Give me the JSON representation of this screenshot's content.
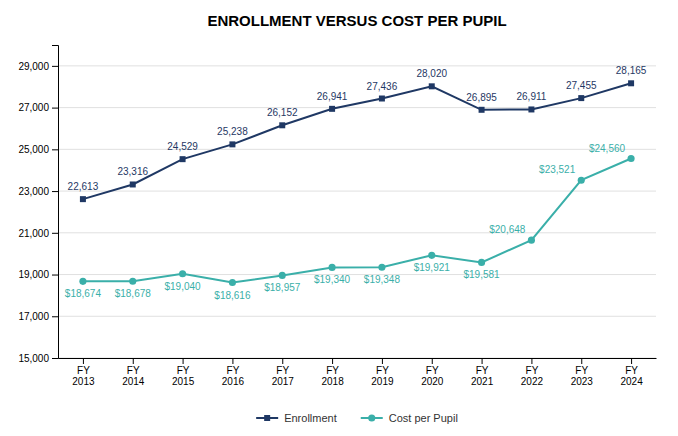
{
  "chart_data": {
    "type": "line",
    "title": "ENROLLMENT VERSUS COST PER PUPIL",
    "categories": [
      "FY\n2013",
      "FY\n2014",
      "FY\n2015",
      "FY\n2016",
      "FY\n2017",
      "FY\n2018",
      "FY\n2019",
      "FY\n2020",
      "FY\n2021",
      "FY\n2022",
      "FY\n2023",
      "FY\n2024"
    ],
    "series": [
      {
        "name": "Enrollment",
        "color": "#1F3864",
        "marker": "square",
        "values": [
          22613,
          23316,
          24529,
          25238,
          26152,
          26941,
          27436,
          28020,
          26895,
          26911,
          27455,
          28165
        ],
        "value_labels": [
          "22,613",
          "23,316",
          "24,529",
          "25,238",
          "26,152",
          "26,941",
          "27,436",
          "28,020",
          "26,895",
          "26,911",
          "27,455",
          "28,165"
        ]
      },
      {
        "name": "Cost per Pupil",
        "color": "#3AAFA9",
        "marker": "circle",
        "values": [
          18674,
          18678,
          19040,
          18616,
          18957,
          19340,
          19348,
          19921,
          19581,
          20648,
          23521,
          24560
        ],
        "value_labels": [
          "$18,674",
          "$18,678",
          "$19,040",
          "$18,616",
          "$18,957",
          "$19,340",
          "$19,348",
          "$19,921",
          "$19,581",
          "$20,648",
          "$23,521",
          "$24,560"
        ]
      }
    ],
    "ylim": [
      15000,
      30000
    ],
    "yticks": [
      {
        "value": 15000,
        "label": "15,000"
      },
      {
        "value": 17000,
        "label": "17,000"
      },
      {
        "value": 19000,
        "label": "19,000"
      },
      {
        "value": 21000,
        "label": "21,000"
      },
      {
        "value": 23000,
        "label": "23,000"
      },
      {
        "value": 25000,
        "label": "25,000"
      },
      {
        "value": 27000,
        "label": "27,000"
      },
      {
        "value": 29000,
        "label": "29,000"
      }
    ],
    "grid": true,
    "legend": "bottom",
    "data_labels": true
  }
}
